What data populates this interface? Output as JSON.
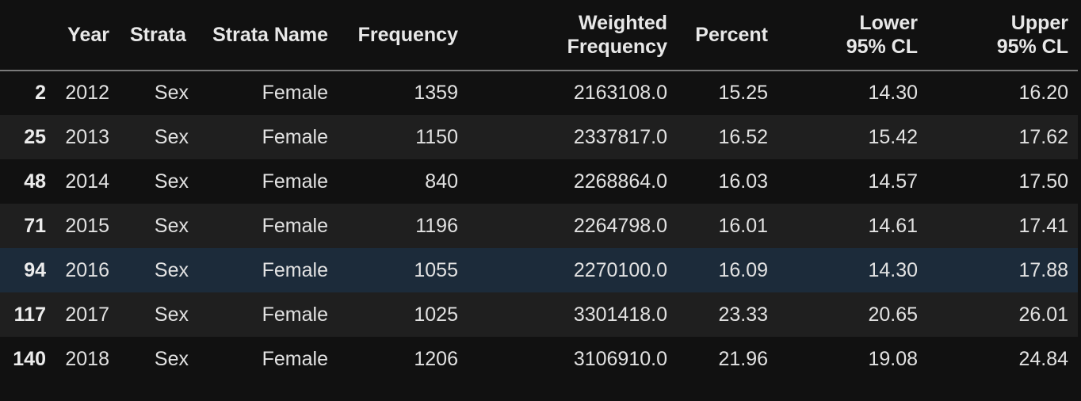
{
  "table": {
    "columns": [
      "",
      "Year",
      "Strata",
      "Strata Name",
      "Frequency",
      "Weighted Frequency",
      "Percent",
      "Lower 95% CL",
      "Upper 95% CL"
    ],
    "rows": [
      [
        "2",
        "2012",
        "Sex",
        "Female",
        "1359",
        "2163108.0",
        "15.25",
        "14.30",
        "16.20"
      ],
      [
        "25",
        "2013",
        "Sex",
        "Female",
        "1150",
        "2337817.0",
        "16.52",
        "15.42",
        "17.62"
      ],
      [
        "48",
        "2014",
        "Sex",
        "Female",
        "840",
        "2268864.0",
        "16.03",
        "14.57",
        "17.50"
      ],
      [
        "71",
        "2015",
        "Sex",
        "Female",
        "1196",
        "2264798.0",
        "16.01",
        "14.61",
        "17.41"
      ],
      [
        "94",
        "2016",
        "Sex",
        "Female",
        "1055",
        "2270100.0",
        "16.09",
        "14.30",
        "17.88"
      ],
      [
        "117",
        "2017",
        "Sex",
        "Female",
        "1025",
        "3301418.0",
        "23.33",
        "20.65",
        "26.01"
      ],
      [
        "140",
        "2018",
        "Sex",
        "Female",
        "1206",
        "3106910.0",
        "21.96",
        "19.08",
        "24.84"
      ]
    ]
  }
}
